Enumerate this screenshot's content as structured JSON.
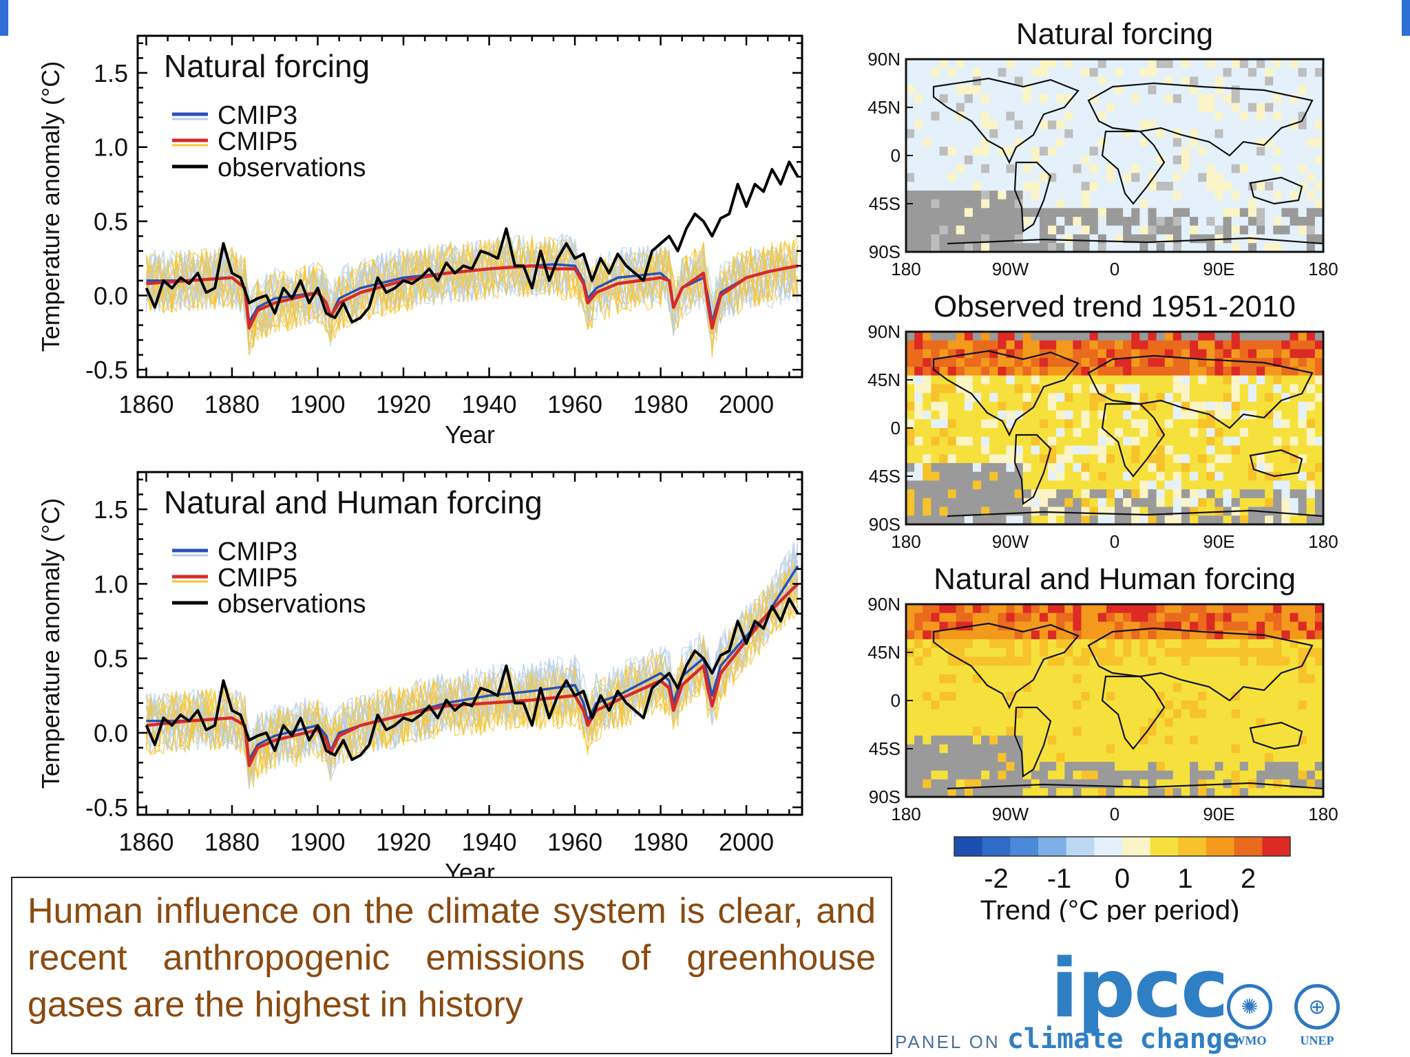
{
  "chart_data": [
    {
      "type": "line",
      "title": "Natural forcing",
      "xlabel": "Year",
      "ylabel": "Temperature anomaly (°C)",
      "xlim": [
        1858,
        2013
      ],
      "ylim": [
        -0.55,
        1.75
      ],
      "xticks": [
        1860,
        1880,
        1900,
        1920,
        1940,
        1960,
        1980,
        2000
      ],
      "yticks": [
        -0.5,
        0.0,
        0.5,
        1.0,
        1.5
      ],
      "ytick_labels": [
        "-0.5",
        "0.0",
        "0.5",
        "1.0",
        "1.5"
      ],
      "legend": [
        "CMIP3",
        "CMIP5",
        "observations"
      ],
      "legend_position": "top-left",
      "series": [
        {
          "name": "CMIP3",
          "color": "#2a50b8",
          "x": [
            1860,
            1870,
            1880,
            1883,
            1884,
            1886,
            1890,
            1900,
            1902,
            1903,
            1905,
            1910,
            1920,
            1930,
            1940,
            1950,
            1955,
            1960,
            1962,
            1963,
            1965,
            1970,
            1980,
            1982,
            1983,
            1985,
            1990,
            1991,
            1992,
            1994,
            2000
          ],
          "y": [
            0.1,
            0.1,
            0.12,
            0.05,
            -0.18,
            -0.08,
            -0.02,
            0.02,
            -0.05,
            -0.14,
            -0.02,
            0.05,
            0.12,
            0.15,
            0.18,
            0.2,
            0.21,
            0.2,
            0.1,
            -0.02,
            0.05,
            0.12,
            0.15,
            0.1,
            -0.08,
            0.05,
            0.12,
            0.0,
            -0.18,
            0.02,
            0.12
          ]
        },
        {
          "name": "CMIP5",
          "color": "#d62b2b",
          "x": [
            1860,
            1870,
            1880,
            1883,
            1884,
            1886,
            1890,
            1900,
            1902,
            1903,
            1905,
            1910,
            1920,
            1930,
            1940,
            1950,
            1955,
            1960,
            1962,
            1963,
            1965,
            1970,
            1980,
            1982,
            1983,
            1985,
            1990,
            1991,
            1992,
            1994,
            2000,
            2005,
            2012
          ],
          "y": [
            0.08,
            0.1,
            0.12,
            0.05,
            -0.22,
            -0.1,
            -0.05,
            0.02,
            -0.05,
            -0.14,
            -0.05,
            0.02,
            0.1,
            0.15,
            0.18,
            0.2,
            0.18,
            0.18,
            0.08,
            -0.05,
            0.02,
            0.08,
            0.12,
            0.1,
            -0.08,
            0.05,
            0.15,
            -0.05,
            -0.22,
            0.0,
            0.12,
            0.16,
            0.2
          ]
        },
        {
          "name": "observations",
          "color": "#000000",
          "x": [
            1860,
            1862,
            1864,
            1866,
            1868,
            1870,
            1872,
            1874,
            1876,
            1878,
            1880,
            1882,
            1884,
            1886,
            1888,
            1890,
            1892,
            1894,
            1896,
            1898,
            1900,
            1902,
            1904,
            1906,
            1908,
            1910,
            1912,
            1914,
            1916,
            1918,
            1920,
            1922,
            1924,
            1926,
            1928,
            1930,
            1932,
            1934,
            1936,
            1938,
            1940,
            1942,
            1944,
            1946,
            1948,
            1950,
            1952,
            1954,
            1956,
            1958,
            1960,
            1962,
            1964,
            1966,
            1968,
            1970,
            1972,
            1974,
            1976,
            1978,
            1980,
            1982,
            1984,
            1986,
            1988,
            1990,
            1992,
            1994,
            1996,
            1998,
            2000,
            2002,
            2004,
            2006,
            2008,
            2010,
            2012
          ],
          "y": [
            0.05,
            -0.08,
            0.1,
            0.05,
            0.12,
            0.08,
            0.15,
            0.02,
            0.05,
            0.35,
            0.15,
            0.12,
            -0.05,
            -0.02,
            0.0,
            -0.12,
            0.05,
            -0.02,
            0.1,
            -0.05,
            0.05,
            -0.12,
            -0.15,
            -0.05,
            -0.18,
            -0.15,
            -0.08,
            0.12,
            0.02,
            0.05,
            0.1,
            0.08,
            0.12,
            0.18,
            0.1,
            0.22,
            0.15,
            0.2,
            0.18,
            0.3,
            0.28,
            0.25,
            0.45,
            0.2,
            0.2,
            0.05,
            0.3,
            0.1,
            0.25,
            0.35,
            0.25,
            0.28,
            0.1,
            0.25,
            0.15,
            0.28,
            0.2,
            0.15,
            0.1,
            0.3,
            0.35,
            0.4,
            0.3,
            0.45,
            0.55,
            0.5,
            0.4,
            0.52,
            0.55,
            0.75,
            0.6,
            0.75,
            0.7,
            0.85,
            0.75,
            0.9,
            0.8
          ]
        }
      ]
    },
    {
      "type": "line",
      "title": "Natural and Human forcing",
      "xlabel": "Year",
      "ylabel": "Temperature anomaly (°C)",
      "xlim": [
        1858,
        2013
      ],
      "ylim": [
        -0.55,
        1.75
      ],
      "xticks": [
        1860,
        1880,
        1900,
        1920,
        1940,
        1960,
        1980,
        2000
      ],
      "yticks": [
        -0.5,
        0.0,
        0.5,
        1.0,
        1.5
      ],
      "ytick_labels": [
        "-0.5",
        "0.0",
        "0.5",
        "1.0",
        "1.5"
      ],
      "legend": [
        "CMIP3",
        "CMIP5",
        "observations"
      ],
      "legend_position": "top-left",
      "series": [
        {
          "name": "CMIP3",
          "color": "#2a50b8",
          "x": [
            1860,
            1870,
            1880,
            1883,
            1884,
            1886,
            1890,
            1900,
            1902,
            1903,
            1905,
            1910,
            1920,
            1930,
            1940,
            1950,
            1960,
            1962,
            1963,
            1965,
            1970,
            1980,
            1982,
            1983,
            1985,
            1990,
            1991,
            1992,
            1994,
            2000,
            2005,
            2012
          ],
          "y": [
            0.08,
            0.08,
            0.1,
            0.05,
            -0.18,
            -0.08,
            -0.02,
            0.05,
            -0.02,
            -0.12,
            0.0,
            0.05,
            0.12,
            0.2,
            0.25,
            0.28,
            0.32,
            0.2,
            0.08,
            0.2,
            0.25,
            0.4,
            0.35,
            0.2,
            0.38,
            0.5,
            0.38,
            0.25,
            0.45,
            0.65,
            0.8,
            1.12
          ]
        },
        {
          "name": "CMIP5",
          "color": "#d62b2b",
          "x": [
            1860,
            1870,
            1880,
            1883,
            1884,
            1886,
            1890,
            1900,
            1902,
            1903,
            1905,
            1910,
            1920,
            1930,
            1940,
            1950,
            1960,
            1962,
            1963,
            1965,
            1970,
            1980,
            1982,
            1983,
            1985,
            1990,
            1991,
            1992,
            1994,
            2000,
            2005,
            2012
          ],
          "y": [
            0.05,
            0.08,
            0.1,
            0.05,
            -0.22,
            -0.1,
            -0.05,
            0.02,
            -0.05,
            -0.14,
            -0.02,
            0.05,
            0.12,
            0.18,
            0.2,
            0.22,
            0.25,
            0.15,
            0.05,
            0.15,
            0.22,
            0.35,
            0.3,
            0.15,
            0.32,
            0.45,
            0.3,
            0.18,
            0.4,
            0.62,
            0.8,
            1.0
          ]
        },
        {
          "name": "observations",
          "color": "#000000",
          "x": [
            1860,
            1862,
            1864,
            1866,
            1868,
            1870,
            1872,
            1874,
            1876,
            1878,
            1880,
            1882,
            1884,
            1886,
            1888,
            1890,
            1892,
            1894,
            1896,
            1898,
            1900,
            1902,
            1904,
            1906,
            1908,
            1910,
            1912,
            1914,
            1916,
            1918,
            1920,
            1922,
            1924,
            1926,
            1928,
            1930,
            1932,
            1934,
            1936,
            1938,
            1940,
            1942,
            1944,
            1946,
            1948,
            1950,
            1952,
            1954,
            1956,
            1958,
            1960,
            1962,
            1964,
            1966,
            1968,
            1970,
            1972,
            1974,
            1976,
            1978,
            1980,
            1982,
            1984,
            1986,
            1988,
            1990,
            1992,
            1994,
            1996,
            1998,
            2000,
            2002,
            2004,
            2006,
            2008,
            2010,
            2012
          ],
          "y": [
            0.05,
            -0.08,
            0.1,
            0.05,
            0.12,
            0.08,
            0.15,
            0.02,
            0.05,
            0.35,
            0.15,
            0.12,
            -0.05,
            -0.02,
            0.0,
            -0.12,
            0.05,
            -0.02,
            0.1,
            -0.05,
            0.05,
            -0.12,
            -0.15,
            -0.05,
            -0.18,
            -0.15,
            -0.08,
            0.12,
            0.02,
            0.05,
            0.1,
            0.08,
            0.12,
            0.18,
            0.1,
            0.22,
            0.15,
            0.2,
            0.18,
            0.3,
            0.28,
            0.25,
            0.45,
            0.2,
            0.2,
            0.05,
            0.3,
            0.1,
            0.25,
            0.35,
            0.25,
            0.28,
            0.1,
            0.25,
            0.15,
            0.28,
            0.2,
            0.15,
            0.1,
            0.3,
            0.35,
            0.4,
            0.3,
            0.45,
            0.55,
            0.5,
            0.4,
            0.52,
            0.55,
            0.75,
            0.6,
            0.75,
            0.7,
            0.85,
            0.75,
            0.9,
            0.8
          ]
        }
      ]
    },
    {
      "type": "heatmap",
      "titles": [
        "Natural forcing",
        "Observed trend 1951-2010",
        "Natural and Human forcing"
      ],
      "xticks": [
        "180",
        "90W",
        "0",
        "90E",
        "180"
      ],
      "yticks": [
        "90N",
        "45N",
        "0",
        "45S",
        "90S"
      ],
      "colorbar": {
        "label": "Trend (°C per period)",
        "tick_labels": [
          "-2",
          "-1",
          "0",
          "1",
          "2"
        ],
        "colors": [
          "#1d4fb0",
          "#2e6cc8",
          "#4a8ad8",
          "#7eaee6",
          "#bcd8f2",
          "#e4f1fb",
          "#fbf4c6",
          "#f6e13c",
          "#f7c22a",
          "#f39a1c",
          "#ea6a1e",
          "#dd2a24"
        ]
      }
    }
  ],
  "caption": {
    "text": "Human influence on the climate system is clear, and recent anthropogenic emissions of greenhouse gases are the highest in history"
  },
  "logo": {
    "word": "ipcc",
    "panel_text": "PANEL ON",
    "tagline": "climate change",
    "orgs": [
      "WMO",
      "UNEP"
    ]
  }
}
